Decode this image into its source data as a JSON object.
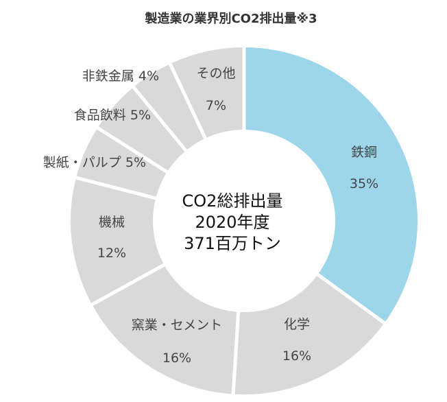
{
  "chart_data": {
    "type": "pie",
    "title": "製造業の業界別CO2排出量※3",
    "center_lines": [
      "CO2総排出量",
      "2020年度",
      "371百万トン"
    ],
    "slices": [
      {
        "category": "鉄鋼",
        "value": 35,
        "value_label": "35%",
        "color": "#9dd5ea"
      },
      {
        "category": "化学",
        "value": 16,
        "value_label": "16%",
        "color": "#d9d9d9"
      },
      {
        "category": "窯業・セメント",
        "value": 16,
        "value_label": "16%",
        "color": "#d9d9d9"
      },
      {
        "category": "機械",
        "value": 12,
        "value_label": "12%",
        "color": "#d9d9d9"
      },
      {
        "category": "製紙・パルプ",
        "value": 5,
        "value_label": "5%",
        "color": "#d9d9d9"
      },
      {
        "category": "食品飲料",
        "value": 5,
        "value_label": "5%",
        "color": "#d9d9d9"
      },
      {
        "category": "非鉄金属",
        "value": 4,
        "value_label": "4%",
        "color": "#d9d9d9"
      },
      {
        "category": "その他",
        "value": 7,
        "value_label": "7%",
        "color": "#d9d9d9"
      }
    ],
    "start": "12 o'clock",
    "direction": "clockwise",
    "donut": true,
    "separator_color": "#ffffff",
    "text_color": "#444444"
  }
}
